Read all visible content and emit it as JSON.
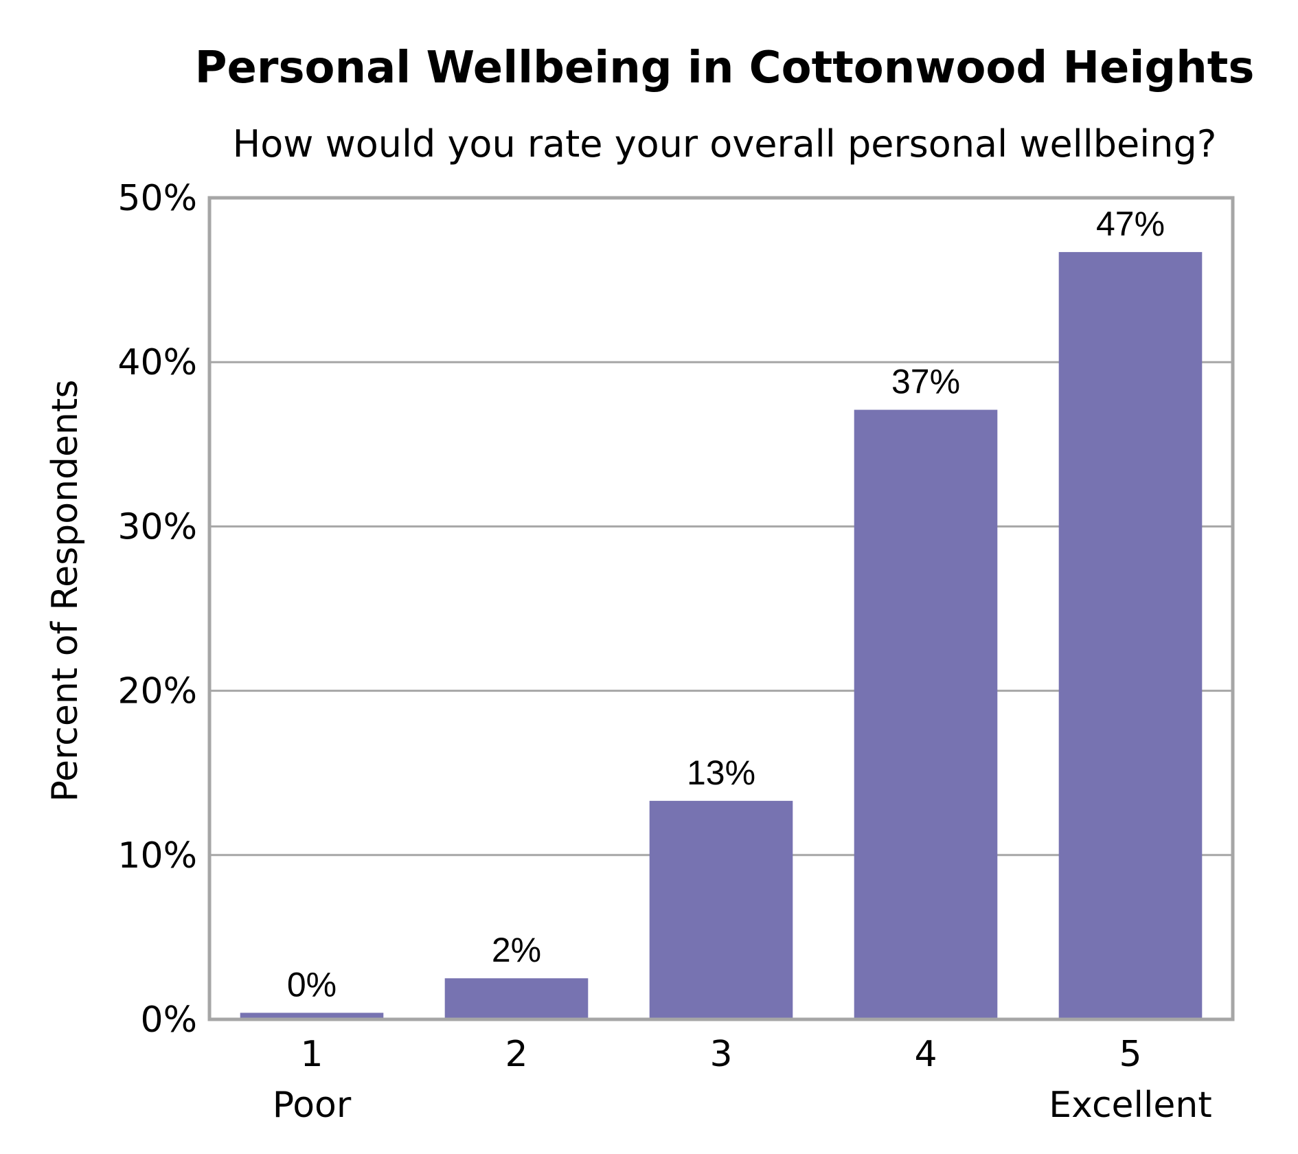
{
  "chart_data": {
    "type": "bar",
    "title": "Personal Wellbeing in Cottonwood Heights",
    "subtitle": "How would you rate your overall personal wellbeing?",
    "ylabel": "Percent of Respondents",
    "xlabel": "",
    "categories": [
      "1",
      "2",
      "3",
      "4",
      "5"
    ],
    "category_sublabels": [
      "Poor",
      "",
      "",
      "",
      "Excellent"
    ],
    "values": [
      0.4,
      2.5,
      13.3,
      37.1,
      46.7
    ],
    "data_labels": [
      "0%",
      "2%",
      "13%",
      "37%",
      "47%"
    ],
    "ylim": [
      0,
      50
    ],
    "yticks": [
      0,
      10,
      20,
      30,
      40,
      50
    ],
    "ytick_labels": [
      "0%",
      "10%",
      "20%",
      "30%",
      "40%",
      "50%"
    ],
    "grid": true,
    "legend": "none",
    "bar_color": "#7773b1",
    "grid_color": "#a6a6a6",
    "frame_color": "#a6a6a6"
  }
}
